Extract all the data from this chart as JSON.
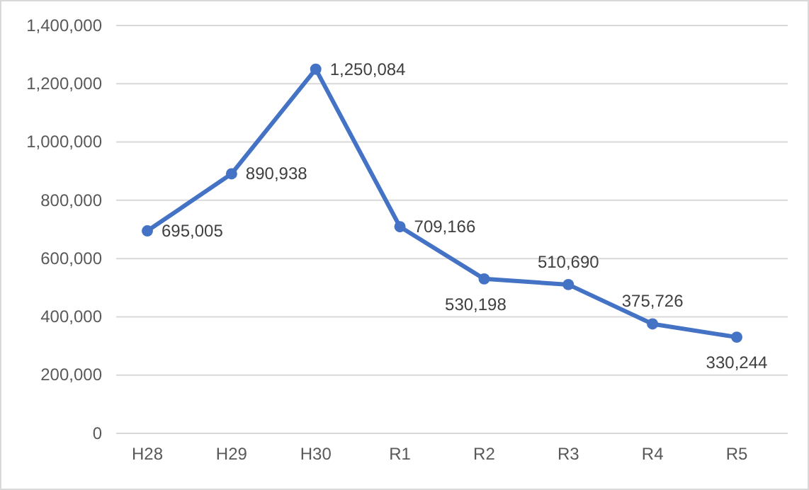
{
  "chart_data": {
    "type": "line",
    "categories": [
      "H28",
      "H29",
      "H30",
      "R1",
      "R2",
      "R3",
      "R4",
      "R5"
    ],
    "series": [
      {
        "color": "#4472c4",
        "values": [
          695005,
          890938,
          1250084,
          709166,
          530198,
          510690,
          375726,
          330244
        ],
        "value_labels": [
          "695,005",
          "890,938",
          "1,250,084",
          "709,166",
          "530,198",
          "510,690",
          "375,726",
          "330,244"
        ]
      }
    ],
    "ylim": [
      0,
      1400000
    ],
    "yticks": [
      {
        "value": 0,
        "label": "0"
      },
      {
        "value": 200000,
        "label": "200,000"
      },
      {
        "value": 400000,
        "label": "400,000"
      },
      {
        "value": 600000,
        "label": "600,000"
      },
      {
        "value": 800000,
        "label": "800,000"
      },
      {
        "value": 1000000,
        "label": "1,000,000"
      },
      {
        "value": 1200000,
        "label": "1,200,000"
      },
      {
        "value": 1400000,
        "label": "1,400,000"
      }
    ],
    "grid": "y",
    "marker": "circle",
    "line_style": "solid"
  }
}
